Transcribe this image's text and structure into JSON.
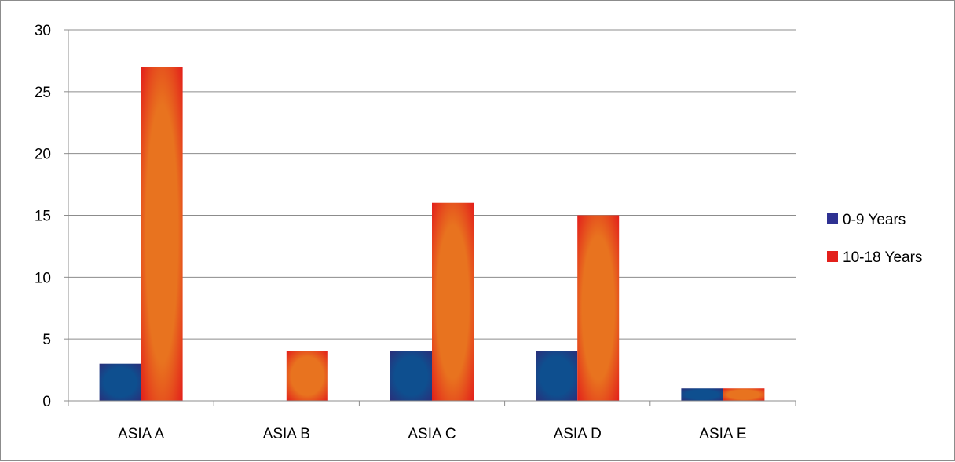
{
  "chart_data": {
    "type": "bar",
    "categories": [
      "ASIA A",
      "ASIA B",
      "ASIA C",
      "ASIA D",
      "ASIA E"
    ],
    "series": [
      {
        "name": "0-9 Years",
        "values": [
          3,
          0,
          4,
          4,
          1
        ],
        "color": "#0e4f8f",
        "legend_color": "#2e3192",
        "edge_color": "#2a2f7a"
      },
      {
        "name": "10-18 Years",
        "values": [
          27,
          4,
          16,
          15,
          1
        ],
        "color": "#e8731f",
        "legend_color": "#e3201b",
        "edge_color": "#e3201b"
      }
    ],
    "yticks": [
      0,
      5,
      10,
      15,
      20,
      25,
      30
    ],
    "ylim": [
      0,
      30
    ],
    "grid": true,
    "legend_position": "right"
  }
}
